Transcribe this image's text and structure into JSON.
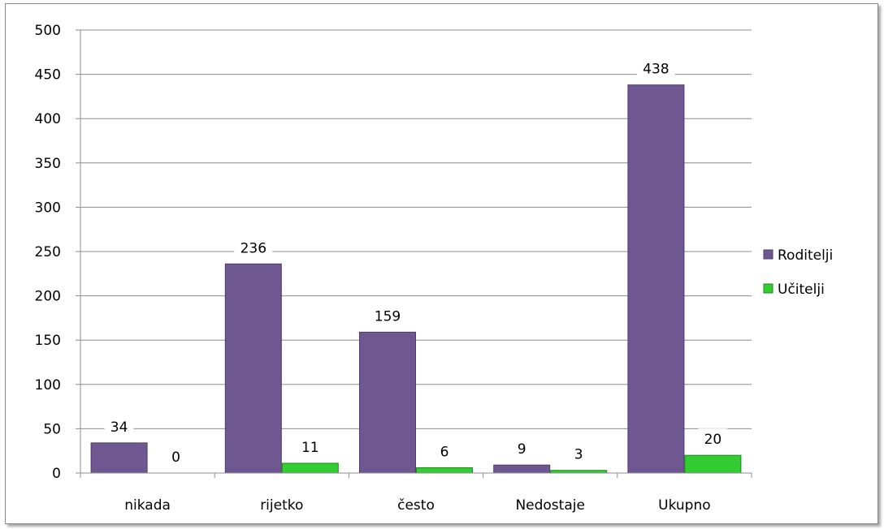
{
  "chart_data": {
    "type": "bar",
    "categories": [
      "nikada",
      "rijetko",
      "često",
      "Nedostaje",
      "Ukupno"
    ],
    "series": [
      {
        "name": "Roditelji",
        "values": [
          34,
          236,
          159,
          9,
          438
        ],
        "color": "#6f5892"
      },
      {
        "name": "Učitelji",
        "values": [
          0,
          11,
          6,
          3,
          20
        ],
        "color": "#33cc33"
      }
    ],
    "ylim": [
      0,
      500
    ],
    "yticks": [
      0,
      50,
      100,
      150,
      200,
      250,
      300,
      350,
      400,
      450,
      500
    ],
    "grid": true,
    "legend_position": "right",
    "title": "",
    "xlabel": "",
    "ylabel": ""
  }
}
